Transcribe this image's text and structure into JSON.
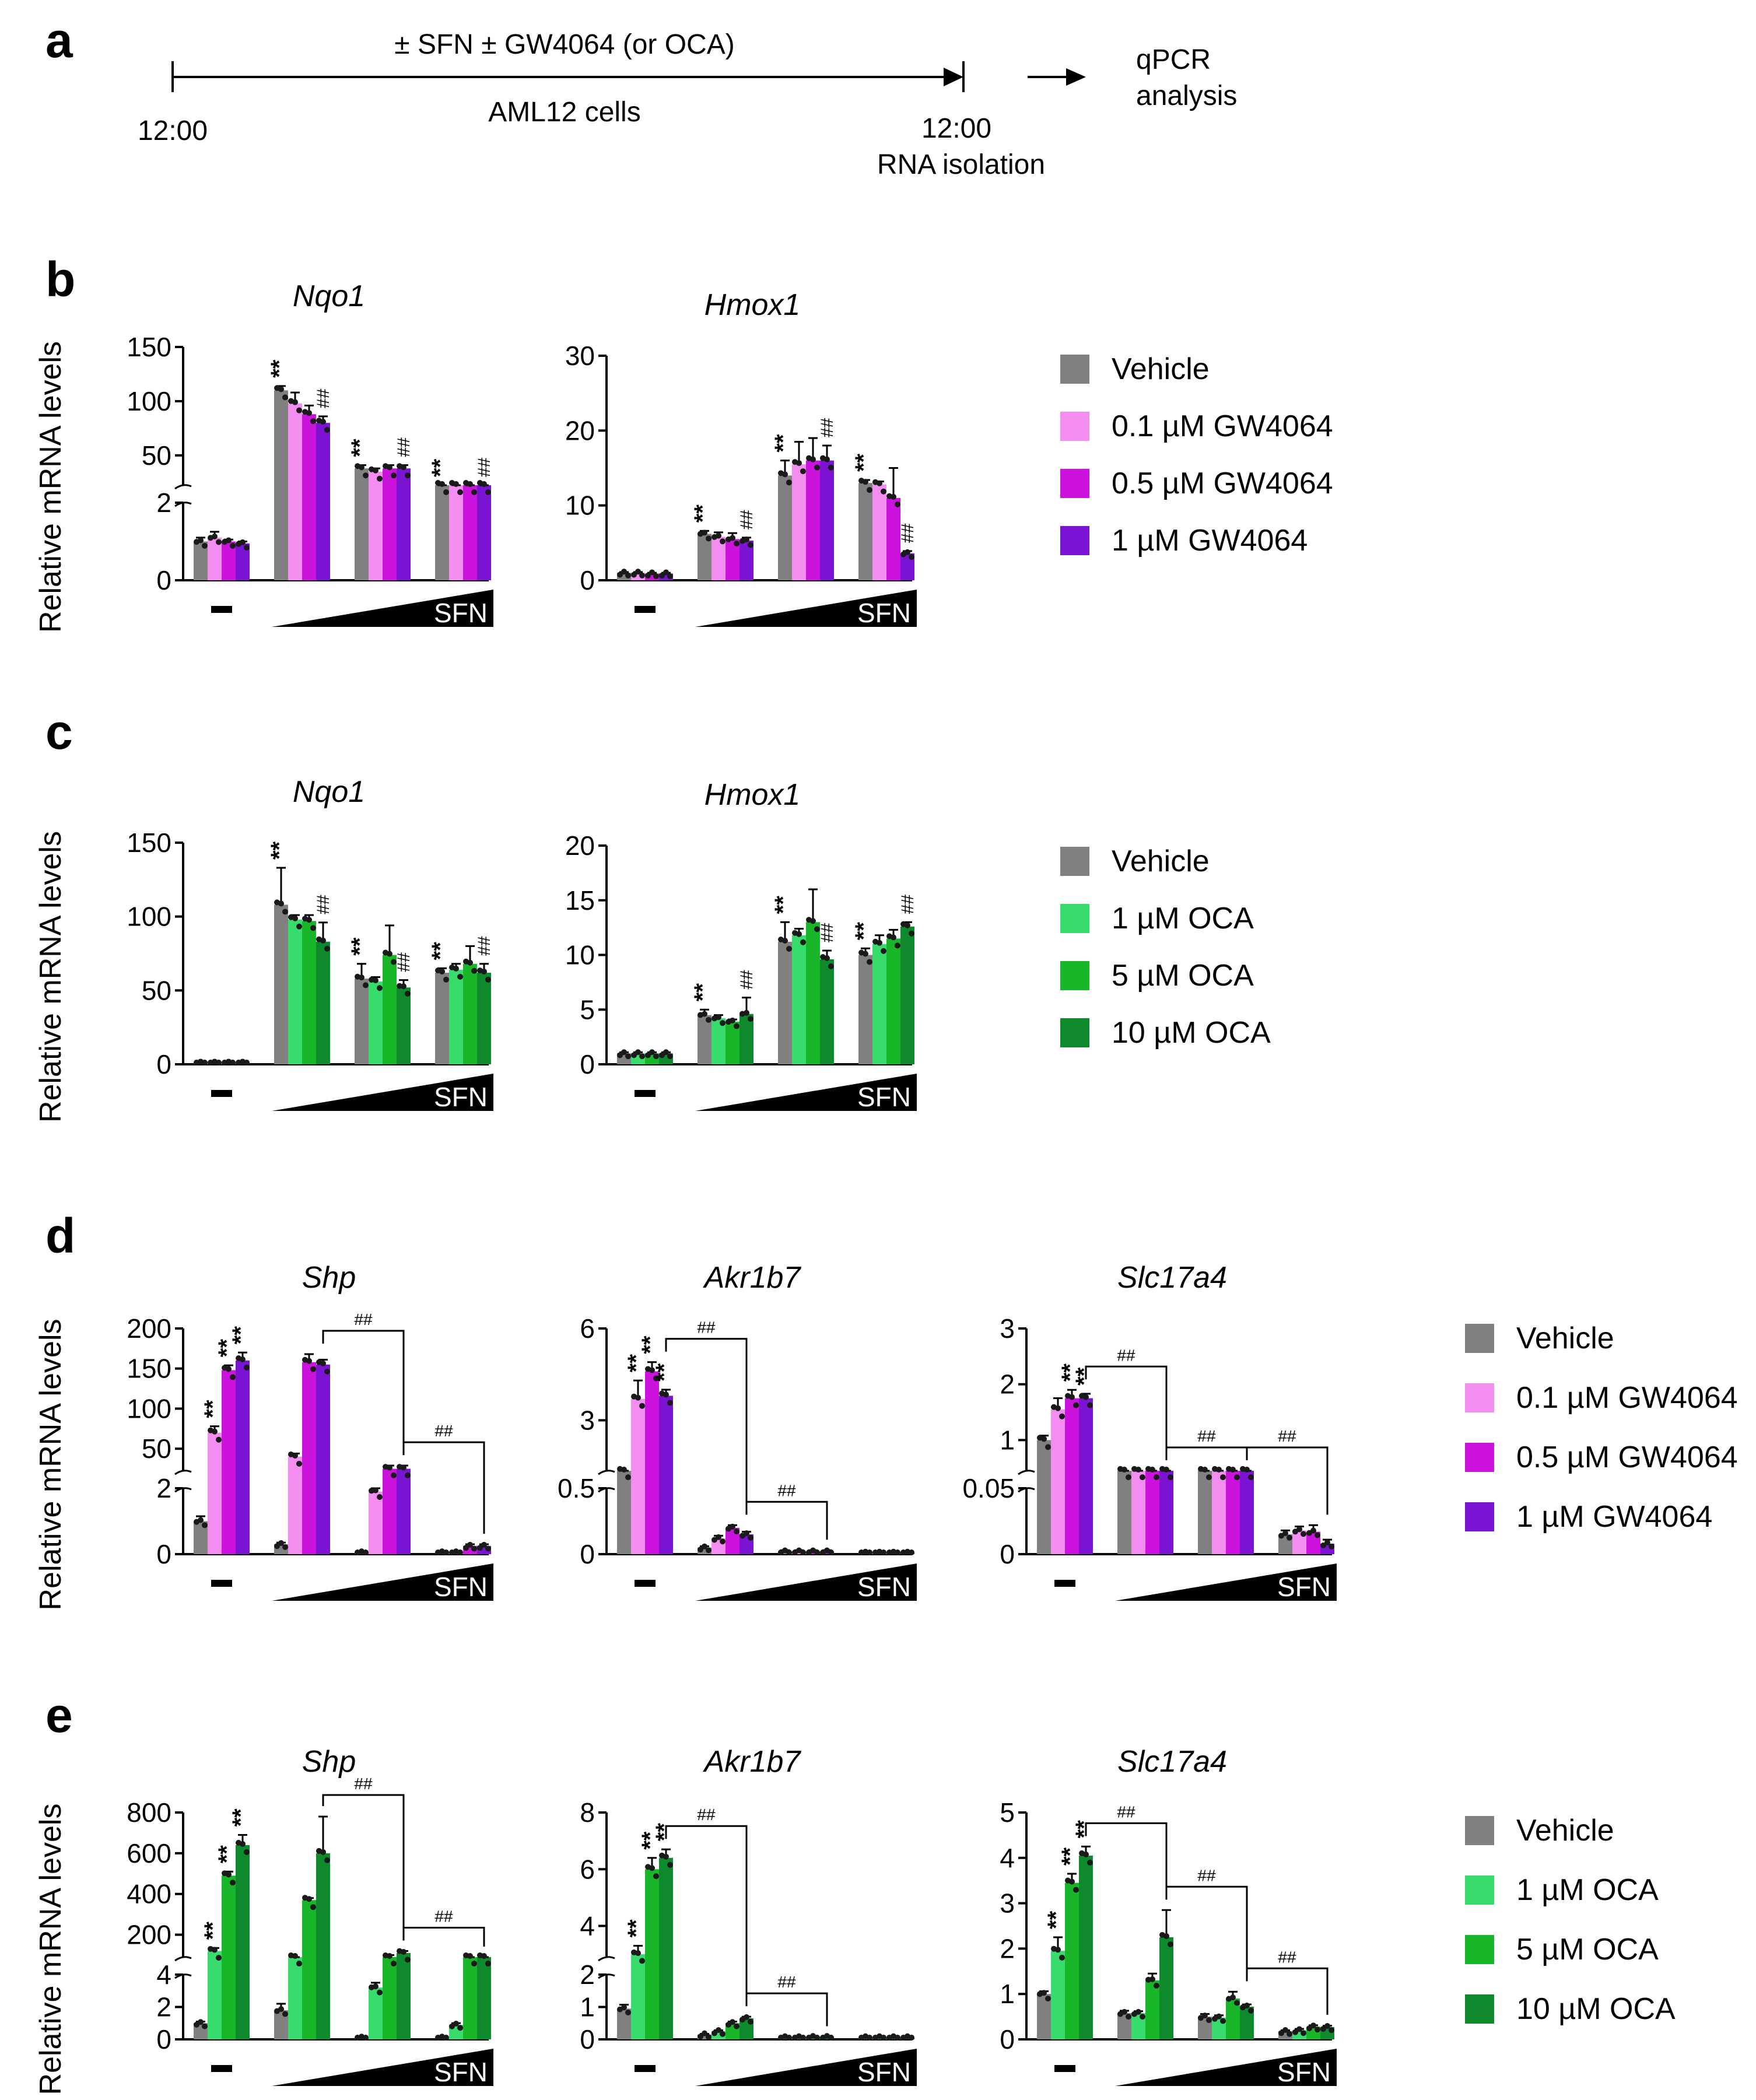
{
  "panel_a": {
    "letter": "a",
    "treatment": "± SFN ± GW4064 (or OCA)",
    "cells": "AML12 cells",
    "start_time": "12:00",
    "end_time": "12:00",
    "rna": "RNA isolation",
    "output_line1": "qPCR",
    "output_line2": "analysis"
  },
  "common": {
    "ylabel": "Relative mRNA levels",
    "sfn_label": "SFN",
    "minus_label": "–"
  },
  "colors": {
    "vehicle": "#808080",
    "gw1": "#f38ef0",
    "gw2": "#cc12dd",
    "gw3": "#7a14d2",
    "oca1": "#37dc6c",
    "oca2": "#1ab62a",
    "oca3": "#0e8a2c"
  },
  "legends": {
    "gw": [
      "Vehicle",
      "0.1 µM GW4064",
      "0.5 µM GW4064",
      "1 µM GW4064"
    ],
    "oca": [
      "Vehicle",
      "1 µM OCA",
      "5 µM OCA",
      "10 µM OCA"
    ]
  },
  "panels": {
    "b": {
      "letter": "b"
    },
    "c": {
      "letter": "c"
    },
    "d": {
      "letter": "d"
    },
    "e": {
      "letter": "e"
    }
  },
  "chart_data": [
    {
      "id": "b-nqo1",
      "type": "bar",
      "panel": "b",
      "title": "Nqo1",
      "treatment": "GW4064",
      "groups": [
        "–",
        "SFN low",
        "SFN mid",
        "SFN high"
      ],
      "series_names": [
        "Vehicle",
        "0.1 µM GW4064",
        "0.5 µM GW4064",
        "1 µM GW4064"
      ],
      "values": [
        [
          1.0,
          1.1,
          1.0,
          0.95
        ],
        [
          110,
          98,
          88,
          80
        ],
        [
          38,
          35,
          38,
          38
        ],
        [
          20,
          20,
          18,
          2.2
        ]
      ],
      "errors": [
        [
          0.1,
          0.15,
          0.05,
          0.05
        ],
        [
          4,
          10,
          8,
          6
        ],
        [
          3,
          3,
          3,
          3
        ],
        [
          1,
          1,
          1,
          0.15
        ]
      ],
      "axis": {
        "broken": true,
        "lower_ticks": [
          0,
          2
        ],
        "upper_ticks": [
          50,
          100,
          150
        ]
      },
      "ylabel": "Relative mRNA levels",
      "annotations": [
        {
          "text": "**",
          "group": 1,
          "series": 0,
          "kind": "star"
        },
        {
          "text": "**",
          "group": 2,
          "series": 0,
          "kind": "star"
        },
        {
          "text": "**",
          "group": 3,
          "series": 0,
          "kind": "star"
        },
        {
          "text": "##",
          "group": 1,
          "series": 3,
          "kind": "hash"
        },
        {
          "text": "##",
          "group": 2,
          "series": 3,
          "kind": "hash"
        },
        {
          "text": "##",
          "group": 3,
          "series": 3,
          "kind": "hash"
        }
      ]
    },
    {
      "id": "b-hmox1",
      "type": "bar",
      "panel": "b",
      "title": "Hmox1",
      "treatment": "GW4064",
      "groups": [
        "–",
        "SFN low",
        "SFN mid",
        "SFN high"
      ],
      "series_names": [
        "Vehicle",
        "0.1 µM GW4064",
        "0.5 µM GW4064",
        "1 µM GW4064"
      ],
      "values": [
        [
          1.0,
          1.0,
          0.9,
          0.9
        ],
        [
          6.2,
          5.8,
          5.5,
          5.3
        ],
        [
          14,
          15.5,
          16,
          16
        ],
        [
          13,
          12.8,
          11,
          3.6
        ]
      ],
      "errors": [
        [
          0.1,
          0.1,
          0.1,
          0.1
        ],
        [
          0.4,
          0.6,
          0.8,
          0.4
        ],
        [
          2,
          3,
          3,
          2
        ],
        [
          0.4,
          0.4,
          4,
          0.3
        ]
      ],
      "axis": {
        "broken": false,
        "ticks": [
          0,
          10,
          20,
          30
        ],
        "ylim": [
          0,
          30
        ]
      },
      "ylabel": "",
      "annotations": [
        {
          "text": "**",
          "group": 1,
          "series": 0,
          "kind": "star"
        },
        {
          "text": "**",
          "group": 2,
          "series": 0,
          "kind": "star"
        },
        {
          "text": "**",
          "group": 3,
          "series": 0,
          "kind": "star"
        },
        {
          "text": "##",
          "group": 1,
          "series": 3,
          "kind": "hash"
        },
        {
          "text": "##",
          "group": 2,
          "series": 3,
          "kind": "hash"
        },
        {
          "text": "##",
          "group": 3,
          "series": 3,
          "kind": "hash"
        }
      ]
    },
    {
      "id": "c-nqo1",
      "type": "bar",
      "panel": "c",
      "title": "Nqo1",
      "treatment": "OCA",
      "groups": [
        "–",
        "SFN low",
        "SFN mid",
        "SFN high"
      ],
      "series_names": [
        "Vehicle",
        "1 µM OCA",
        "5 µM OCA",
        "10 µM OCA"
      ],
      "values": [
        [
          1,
          1,
          1,
          1
        ],
        [
          108,
          98,
          97,
          83
        ],
        [
          58,
          56,
          74,
          52
        ],
        [
          62,
          64,
          68,
          62
        ]
      ],
      "errors": [
        [
          0.3,
          0.3,
          0.3,
          0.3
        ],
        [
          25,
          3,
          4,
          13
        ],
        [
          10,
          3,
          20,
          5
        ],
        [
          3,
          4,
          12,
          6
        ]
      ],
      "axis": {
        "broken": false,
        "ticks": [
          0,
          50,
          100,
          150
        ],
        "ylim": [
          0,
          150
        ]
      },
      "ylabel": "Relative mRNA levels",
      "annotations": [
        {
          "text": "**",
          "group": 1,
          "series": 0,
          "kind": "star"
        },
        {
          "text": "**",
          "group": 2,
          "series": 0,
          "kind": "star"
        },
        {
          "text": "**",
          "group": 3,
          "series": 0,
          "kind": "star"
        },
        {
          "text": "##",
          "group": 1,
          "series": 3,
          "kind": "hash"
        },
        {
          "text": "##",
          "group": 2,
          "series": 3,
          "kind": "hash"
        },
        {
          "text": "##",
          "group": 3,
          "series": 3,
          "kind": "hash"
        }
      ]
    },
    {
      "id": "c-hmox1",
      "type": "bar",
      "panel": "c",
      "title": "Hmox1",
      "treatment": "OCA",
      "groups": [
        "–",
        "SFN low",
        "SFN mid",
        "SFN high"
      ],
      "series_names": [
        "Vehicle",
        "1 µM OCA",
        "5 µM OCA",
        "10 µM OCA"
      ],
      "values": [
        [
          1.0,
          1.0,
          1.0,
          1.0
        ],
        [
          4.5,
          4.2,
          3.9,
          4.6
        ],
        [
          11.2,
          11.8,
          13,
          9.6
        ],
        [
          10,
          11,
          11.5,
          12.6
        ]
      ],
      "errors": [
        [
          0.1,
          0.1,
          0.1,
          0.1
        ],
        [
          0.5,
          0.3,
          0.2,
          1.5
        ],
        [
          1.8,
          0.6,
          3,
          0.8
        ],
        [
          0.6,
          0.8,
          0.8,
          0.4
        ]
      ],
      "axis": {
        "broken": false,
        "ticks": [
          0,
          5,
          10,
          15,
          20
        ],
        "ylim": [
          0,
          20
        ]
      },
      "ylabel": "",
      "annotations": [
        {
          "text": "**",
          "group": 1,
          "series": 0,
          "kind": "star"
        },
        {
          "text": "**",
          "group": 2,
          "series": 0,
          "kind": "star"
        },
        {
          "text": "**",
          "group": 3,
          "series": 0,
          "kind": "star"
        },
        {
          "text": "##",
          "group": 1,
          "series": 3,
          "kind": "hash"
        },
        {
          "text": "##",
          "group": 2,
          "series": 3,
          "kind": "hash"
        },
        {
          "text": "##",
          "group": 3,
          "series": 3,
          "kind": "hash"
        }
      ]
    },
    {
      "id": "d-shp",
      "type": "bar",
      "panel": "d",
      "title": "Shp",
      "treatment": "GW4064",
      "groups": [
        "–",
        "SFN low",
        "SFN mid",
        "SFN high"
      ],
      "series_names": [
        "Vehicle",
        "0.1 µM GW4064",
        "0.5 µM GW4064",
        "1 µM GW4064"
      ],
      "values": [
        [
          1.0,
          70,
          148,
          160
        ],
        [
          0.3,
          40,
          158,
          155
        ],
        [
          0.05,
          1.9,
          25,
          25
        ],
        [
          0.05,
          0.05,
          0.25,
          0.25
        ]
      ],
      "errors": [
        [
          0.15,
          8,
          6,
          10
        ],
        [
          0.05,
          4,
          10,
          6
        ],
        [
          0.02,
          0.1,
          4,
          4
        ],
        [
          0.02,
          0.02,
          0.05,
          0.05
        ]
      ],
      "axis": {
        "broken": true,
        "lower_ticks": [
          0,
          2
        ],
        "upper_ticks": [
          50,
          100,
          150,
          200
        ]
      },
      "ylabel": "Relative mRNA levels",
      "annotations": [
        {
          "text": "**",
          "group": 0,
          "series": 1,
          "kind": "star"
        },
        {
          "text": "**",
          "group": 0,
          "series": 2,
          "kind": "star"
        },
        {
          "text": "**",
          "group": 0,
          "series": 3,
          "kind": "star"
        }
      ],
      "brackets": [
        {
          "from": 1,
          "to": 2,
          "text": "##"
        },
        {
          "from": 2,
          "to": 3,
          "text": "##"
        }
      ]
    },
    {
      "id": "d-akr1b7",
      "type": "bar",
      "panel": "d",
      "title": "Akr1b7",
      "treatment": "GW4064",
      "groups": [
        "–",
        "SFN low",
        "SFN mid",
        "SFN high"
      ],
      "series_names": [
        "Vehicle",
        "0.1 µM GW4064",
        "0.5 µM GW4064",
        "1 µM GW4064"
      ],
      "values": [
        [
          1.0,
          3.7,
          4.6,
          3.8
        ],
        [
          0.05,
          0.12,
          0.2,
          0.15
        ],
        [
          0.02,
          0.02,
          0.02,
          0.02
        ],
        [
          0.01,
          0.01,
          0.01,
          0.01
        ]
      ],
      "errors": [
        [
          0.05,
          0.6,
          0.3,
          0.2
        ],
        [
          0.01,
          0.02,
          0.02,
          0.02
        ],
        [
          0.01,
          0.01,
          0.01,
          0.01
        ],
        [
          0.005,
          0.005,
          0.005,
          0.005
        ]
      ],
      "axis": {
        "broken": true,
        "lower_ticks": [
          0,
          0.5
        ],
        "upper_ticks": [
          3,
          6
        ]
      },
      "ylabel": "",
      "annotations": [
        {
          "text": "**",
          "group": 0,
          "series": 1,
          "kind": "star"
        },
        {
          "text": "**",
          "group": 0,
          "series": 2,
          "kind": "star"
        },
        {
          "text": "**",
          "group": 0,
          "series": 3,
          "kind": "star"
        }
      ],
      "brackets": [
        {
          "from": 0,
          "to": 1,
          "text": "##"
        },
        {
          "from": 1,
          "to": 2,
          "text": "##"
        }
      ]
    },
    {
      "id": "d-slc17a4",
      "type": "bar",
      "panel": "d",
      "title": "Slc17a4",
      "treatment": "GW4064",
      "groups": [
        "–",
        "SFN low",
        "SFN mid",
        "SFN high"
      ],
      "series_names": [
        "Vehicle",
        "0.1 µM GW4064",
        "0.5 µM GW4064",
        "1 µM GW4064"
      ],
      "values": [
        [
          1.0,
          1.55,
          1.75,
          1.75
        ],
        [
          0.055,
          0.06,
          0.075,
          0.073
        ],
        [
          0.055,
          0.058,
          0.06,
          0.06
        ],
        [
          0.015,
          0.018,
          0.017,
          0.008
        ]
      ],
      "errors": [
        [
          0.08,
          0.2,
          0.15,
          0.08
        ],
        [
          0.002,
          0.003,
          0.004,
          0.003
        ],
        [
          0.002,
          0.002,
          0.003,
          0.003
        ],
        [
          0.003,
          0.003,
          0.005,
          0.003
        ]
      ],
      "axis": {
        "broken": true,
        "lower_ticks": [
          0,
          0.05
        ],
        "upper_ticks": [
          1,
          2,
          3
        ]
      },
      "ylabel": "",
      "annotations": [
        {
          "text": "**",
          "group": 0,
          "series": 2,
          "kind": "star"
        },
        {
          "text": "**",
          "group": 0,
          "series": 3,
          "kind": "star"
        }
      ],
      "brackets": [
        {
          "from": 0,
          "to": 1,
          "text": "##"
        },
        {
          "from": 1,
          "to": 2,
          "text": "##"
        },
        {
          "from": 2,
          "to": 3,
          "text": "##"
        }
      ]
    },
    {
      "id": "e-shp",
      "type": "bar",
      "panel": "e",
      "title": "Shp",
      "treatment": "OCA",
      "groups": [
        "–",
        "SFN low",
        "SFN mid",
        "SFN high"
      ],
      "series_names": [
        "Vehicle",
        "1 µM OCA",
        "5 µM OCA",
        "10 µM OCA"
      ],
      "values": [
        [
          1.0,
          120,
          490,
          640
        ],
        [
          1.8,
          50,
          370,
          600
        ],
        [
          0.1,
          3.2,
          90,
          110
        ],
        [
          0.1,
          0.9,
          50,
          55
        ]
      ],
      "errors": [
        [
          0.1,
          15,
          20,
          50
        ],
        [
          0.4,
          5,
          10,
          180
        ],
        [
          0.05,
          0.3,
          10,
          10
        ],
        [
          0.05,
          0.1,
          5,
          5
        ]
      ],
      "axis": {
        "broken": true,
        "lower_ticks": [
          0,
          2,
          4
        ],
        "upper_ticks": [
          200,
          400,
          600,
          800
        ]
      },
      "ylabel": "Relative mRNA levels",
      "annotations": [
        {
          "text": "**",
          "group": 0,
          "series": 1,
          "kind": "star"
        },
        {
          "text": "**",
          "group": 0,
          "series": 2,
          "kind": "star"
        },
        {
          "text": "**",
          "group": 0,
          "series": 3,
          "kind": "star"
        }
      ],
      "brackets": [
        {
          "from": 1,
          "to": 2,
          "text": "##"
        },
        {
          "from": 2,
          "to": 3,
          "text": "##"
        }
      ]
    },
    {
      "id": "e-akr1b7",
      "type": "bar",
      "panel": "e",
      "title": "Akr1b7",
      "treatment": "OCA",
      "groups": [
        "–",
        "SFN low",
        "SFN mid",
        "SFN high"
      ],
      "series_names": [
        "Vehicle",
        "1 µM OCA",
        "5 µM OCA",
        "10 µM OCA"
      ],
      "values": [
        [
          0.95,
          3.0,
          6.0,
          6.4
        ],
        [
          0.15,
          0.25,
          0.5,
          0.65
        ],
        [
          0.06,
          0.06,
          0.07,
          0.07
        ],
        [
          0.06,
          0.06,
          0.06,
          0.06
        ]
      ],
      "errors": [
        [
          0.12,
          0.3,
          0.4,
          0.3
        ],
        [
          0.02,
          0.03,
          0.05,
          0.05
        ],
        [
          0.01,
          0.01,
          0.01,
          0.01
        ],
        [
          0.01,
          0.01,
          0.01,
          0.01
        ]
      ],
      "axis": {
        "broken": true,
        "lower_ticks": [
          0,
          1,
          2
        ],
        "upper_ticks": [
          4,
          6,
          8
        ]
      },
      "ylabel": "",
      "annotations": [
        {
          "text": "**",
          "group": 0,
          "series": 1,
          "kind": "star"
        },
        {
          "text": "**",
          "group": 0,
          "series": 2,
          "kind": "star"
        },
        {
          "text": "**",
          "group": 0,
          "series": 3,
          "kind": "star"
        }
      ],
      "brackets": [
        {
          "from": 0,
          "to": 1,
          "text": "##"
        },
        {
          "from": 1,
          "to": 2,
          "text": "##"
        }
      ]
    },
    {
      "id": "e-slc17a4",
      "type": "bar",
      "panel": "e",
      "title": "Slc17a4",
      "treatment": "OCA",
      "groups": [
        "–",
        "SFN low",
        "SFN mid",
        "SFN high"
      ],
      "series_names": [
        "Vehicle",
        "1 µM OCA",
        "5 µM OCA",
        "10 µM OCA"
      ],
      "values": [
        [
          1.0,
          1.95,
          3.45,
          4.05
        ],
        [
          0.58,
          0.58,
          1.3,
          2.25
        ],
        [
          0.5,
          0.48,
          0.9,
          0.72
        ],
        [
          0.18,
          0.2,
          0.28,
          0.27
        ]
      ],
      "errors": [
        [
          0.06,
          0.3,
          0.2,
          0.2
        ],
        [
          0.05,
          0.04,
          0.15,
          0.6
        ],
        [
          0.06,
          0.05,
          0.15,
          0.05
        ],
        [
          0.02,
          0.03,
          0.03,
          0.03
        ]
      ],
      "axis": {
        "broken": false,
        "ticks": [
          0,
          1,
          2,
          3,
          4,
          5
        ],
        "ylim": [
          0,
          5
        ]
      },
      "ylabel": "",
      "annotations": [
        {
          "text": "**",
          "group": 0,
          "series": 1,
          "kind": "star"
        },
        {
          "text": "**",
          "group": 0,
          "series": 2,
          "kind": "star"
        },
        {
          "text": "**",
          "group": 0,
          "series": 3,
          "kind": "star"
        }
      ],
      "brackets": [
        {
          "from": 0,
          "to": 1,
          "text": "##"
        },
        {
          "from": 1,
          "to": 2,
          "text": "##"
        },
        {
          "from": 2,
          "to": 3,
          "text": "##"
        }
      ]
    }
  ]
}
